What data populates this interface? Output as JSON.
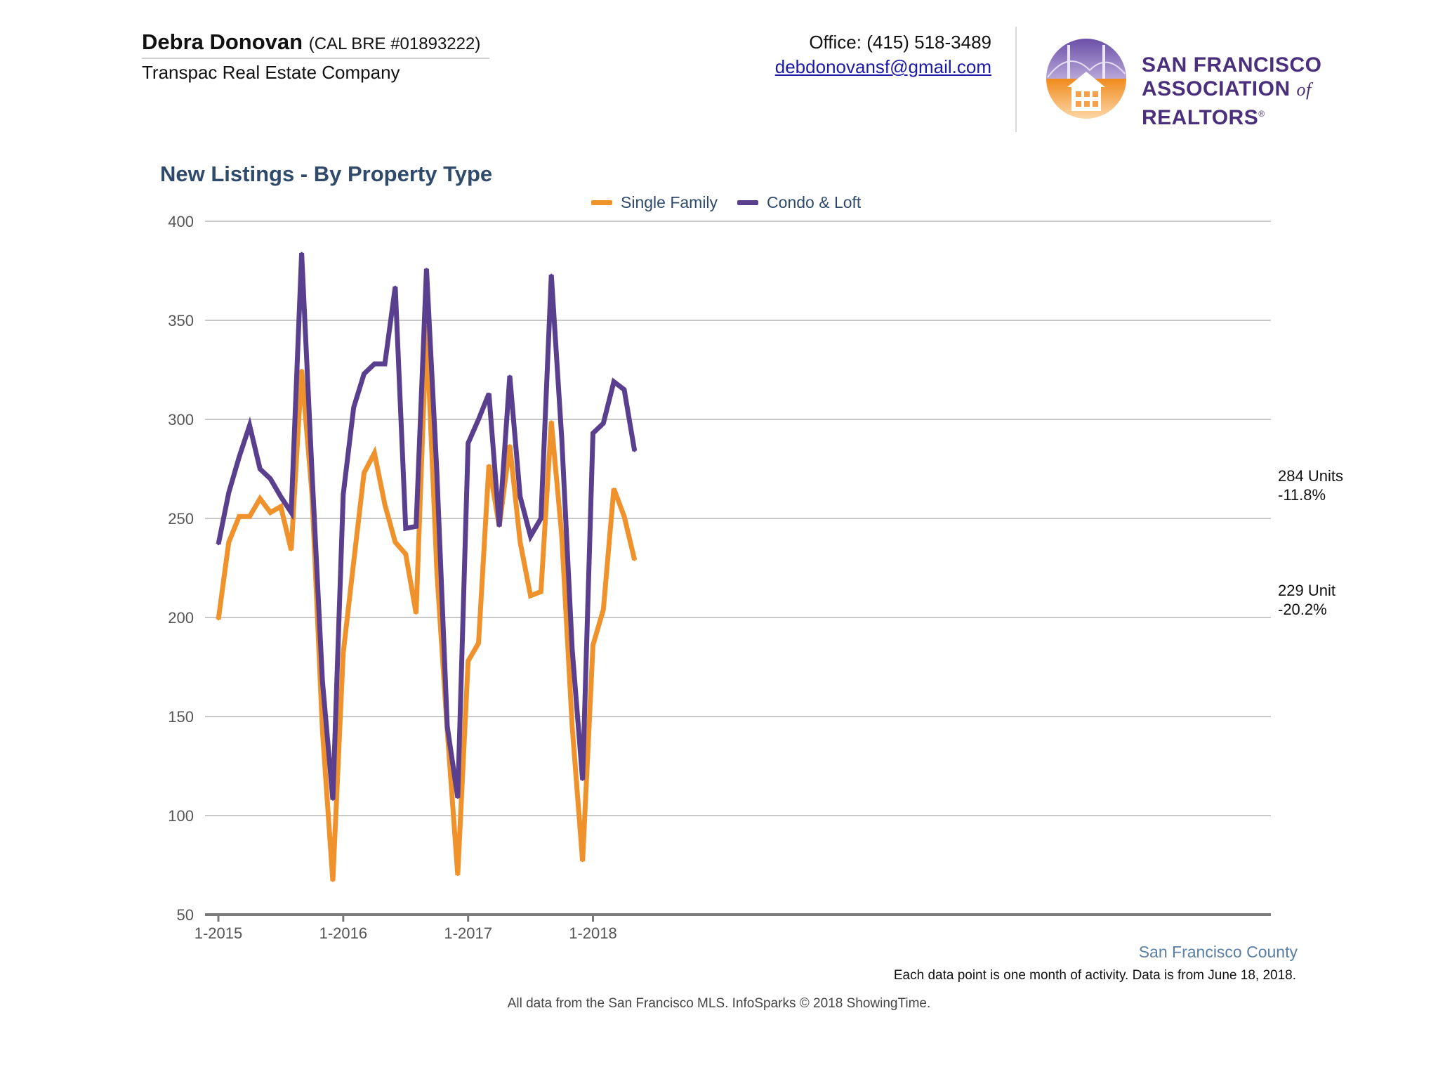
{
  "header": {
    "agent_name": "Debra Donovan",
    "agent_license": "(CAL BRE #01893222)",
    "company": "Transpac Real Estate Company",
    "office_phone": "Office: (415) 518-3489",
    "email": "debdonovansf@gmail.com",
    "association_line1": "San Francisco",
    "association_line2a": "Association",
    "association_of": "of",
    "association_line2b": "Realtors",
    "association_reg": "®"
  },
  "colors": {
    "single_family": "#F0922B",
    "condo_loft": "#5B3F8F",
    "grid": "#c8c8c8",
    "axis": "#7a7a7a",
    "title": "#2f4a6a"
  },
  "chart_data": {
    "type": "line",
    "title": "New Listings - By Property Type",
    "xlabel": "",
    "ylabel": "",
    "ylim": [
      50,
      400
    ],
    "yticks": [
      50,
      100,
      150,
      200,
      250,
      300,
      350,
      400
    ],
    "grid": true,
    "legend_position": "top-center",
    "x": [
      "1-2015",
      "2-2015",
      "3-2015",
      "4-2015",
      "5-2015",
      "6-2015",
      "7-2015",
      "8-2015",
      "9-2015",
      "10-2015",
      "11-2015",
      "12-2015",
      "1-2016",
      "2-2016",
      "3-2016",
      "4-2016",
      "5-2016",
      "6-2016",
      "7-2016",
      "8-2016",
      "9-2016",
      "10-2016",
      "11-2016",
      "12-2016",
      "1-2017",
      "2-2017",
      "3-2017",
      "4-2017",
      "5-2017",
      "6-2017",
      "7-2017",
      "8-2017",
      "9-2017",
      "10-2017",
      "11-2017",
      "12-2017",
      "1-2018",
      "2-2018",
      "3-2018",
      "4-2018",
      "5-2018"
    ],
    "x_tick_labels": [
      "1-2015",
      "1-2016",
      "1-2017",
      "1-2018"
    ],
    "series": [
      {
        "name": "Single Family",
        "values": [
          199,
          238,
          251,
          251,
          260,
          253,
          256,
          234,
          325,
          262,
          143,
          67,
          182,
          228,
          273,
          283,
          257,
          238,
          232,
          202,
          347,
          223,
          143,
          70,
          178,
          187,
          277,
          246,
          287,
          238,
          211,
          213,
          299,
          241,
          145,
          77,
          186,
          204,
          265,
          251,
          229
        ]
      },
      {
        "name": "Condo & Loft",
        "values": [
          237,
          263,
          281,
          297,
          275,
          270,
          261,
          253,
          384,
          273,
          168,
          108,
          262,
          306,
          323,
          328,
          328,
          367,
          245,
          246,
          376,
          273,
          145,
          109,
          288,
          300,
          313,
          246,
          322,
          261,
          241,
          250,
          373,
          290,
          184,
          118,
          293,
          298,
          319,
          315,
          284
        ]
      }
    ],
    "end_labels": [
      {
        "line1": "284 Units",
        "line2": "-11.8%"
      },
      {
        "line1": "229 Unit",
        "line2": "-20.2%"
      }
    ],
    "region_label": "San Francisco County"
  },
  "notes": {
    "data_note": "Each data point is one month of activity. Data is from June 18, 2018.",
    "footer": "All data from the San Francisco MLS. InfoSparks © 2018 ShowingTime."
  }
}
